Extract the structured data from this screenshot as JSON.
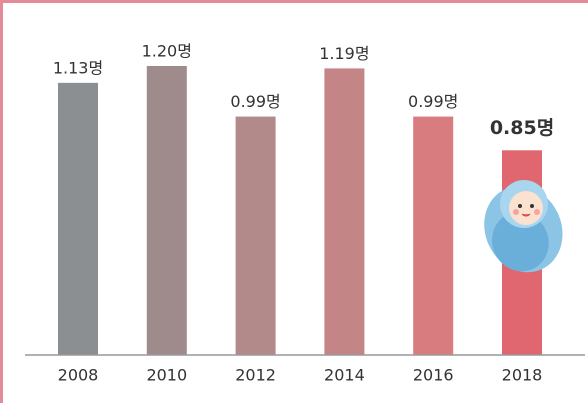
{
  "chart_data": {
    "type": "bar",
    "categories": [
      "2008",
      "2010",
      "2012",
      "2014",
      "2016",
      "2018"
    ],
    "values": [
      1.13,
      1.2,
      0.99,
      1.19,
      0.99,
      0.85
    ],
    "value_labels": [
      "1.13명",
      "1.20명",
      "0.99명",
      "1.19명",
      "0.99명",
      "0.85명"
    ],
    "colors": [
      "#8c8f92",
      "#9f8a8c",
      "#b28a8a",
      "#c48587",
      "#d97c80",
      "#e0676f"
    ]
  }
}
